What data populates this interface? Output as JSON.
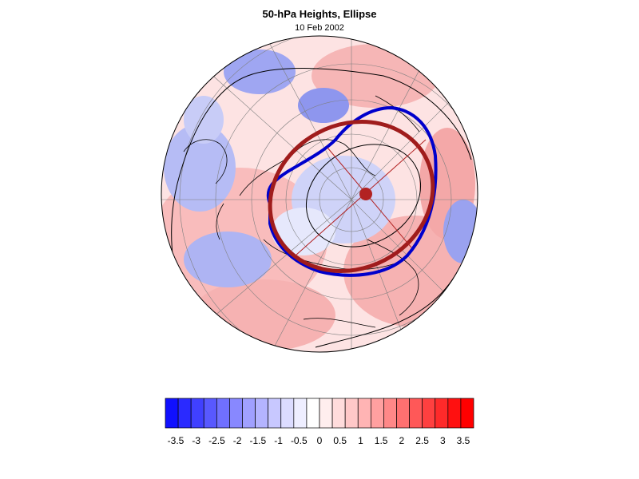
{
  "figure": {
    "title": "50-hPa Heights, Ellipse",
    "subtitle": "10 Feb 2002"
  },
  "map": {
    "projection": "north-polar-stereographic",
    "features": [
      "coastlines",
      "lat-lon graticule",
      "height contours",
      "fitted vortex ellipse",
      "vortex centroid"
    ]
  },
  "overlays": {
    "vortex_edge_color": "#0000cc",
    "ellipse_color": "#a01c1c",
    "centroid_color": "#b22222"
  },
  "colorbar": {
    "tick_labels": [
      "-3.5",
      "-3",
      "-2.5",
      "-2",
      "-1.5",
      "-1",
      "-0.5",
      "0",
      "0.5",
      "1",
      "1.5",
      "2",
      "2.5",
      "3",
      "3.5"
    ],
    "colors": [
      "#1010ff",
      "#2a2aff",
      "#4040ff",
      "#5858ff",
      "#7070ff",
      "#8888ff",
      "#a0a0ff",
      "#b4b4ff",
      "#c8c8ff",
      "#dcdcff",
      "#eeeeff",
      "#ffffff",
      "#ffeeee",
      "#ffdcdc",
      "#ffc8c8",
      "#ffb4b4",
      "#ffa0a0",
      "#ff8888",
      "#ff7070",
      "#ff5858",
      "#ff4040",
      "#ff2a2a",
      "#ff1010",
      "#ff0000"
    ]
  }
}
